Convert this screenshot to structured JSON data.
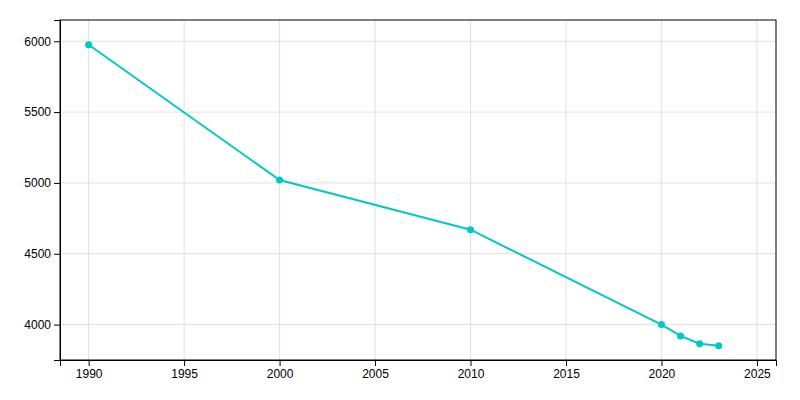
{
  "chart_data": {
    "type": "line",
    "x": [
      1990,
      2000,
      2010,
      2020,
      2021,
      2022,
      2023
    ],
    "values": [
      5975,
      5020,
      4670,
      4000,
      3920,
      3865,
      3850
    ],
    "color": "#00c8c8",
    "marker": "circle",
    "xlim": [
      1988.5,
      2026
    ],
    "ylim": [
      3750,
      6150
    ],
    "xticks": [
      1990,
      1995,
      2000,
      2005,
      2010,
      2015,
      2020,
      2025
    ],
    "yticks": [
      4000,
      4500,
      5000,
      5500,
      6000
    ],
    "grid": true
  }
}
